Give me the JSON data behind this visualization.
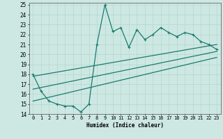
{
  "xlabel": "Humidex (Indice chaleur)",
  "xlim": [
    -0.5,
    23.5
  ],
  "ylim": [
    14,
    25.2
  ],
  "xticks": [
    0,
    1,
    2,
    3,
    4,
    5,
    6,
    7,
    8,
    9,
    10,
    11,
    12,
    13,
    14,
    15,
    16,
    17,
    18,
    19,
    20,
    21,
    22,
    23
  ],
  "yticks": [
    14,
    15,
    16,
    17,
    18,
    19,
    20,
    21,
    22,
    23,
    24,
    25
  ],
  "background_color": "#cde8e3",
  "grid_color": "#b8d8d2",
  "line_color": "#1a7a6e",
  "main_x": [
    0,
    1,
    2,
    3,
    4,
    5,
    6,
    7,
    8,
    9,
    10,
    11,
    12,
    13,
    14,
    15,
    16,
    17,
    18,
    19,
    20,
    21,
    22,
    23
  ],
  "main_y": [
    18,
    16.3,
    15.3,
    15.0,
    14.8,
    14.8,
    14.2,
    15.0,
    21.0,
    25.0,
    22.3,
    22.7,
    20.7,
    22.5,
    21.5,
    22.0,
    22.7,
    22.2,
    21.8,
    22.2,
    22.0,
    21.3,
    21.0,
    20.5
  ],
  "upper_line_x": [
    0,
    23
  ],
  "upper_line_y": [
    17.8,
    21.0
  ],
  "lower_line_x": [
    0,
    23
  ],
  "lower_line_y": [
    15.3,
    19.7
  ],
  "mid_line_x": [
    0,
    23
  ],
  "mid_line_y": [
    16.5,
    20.3
  ]
}
